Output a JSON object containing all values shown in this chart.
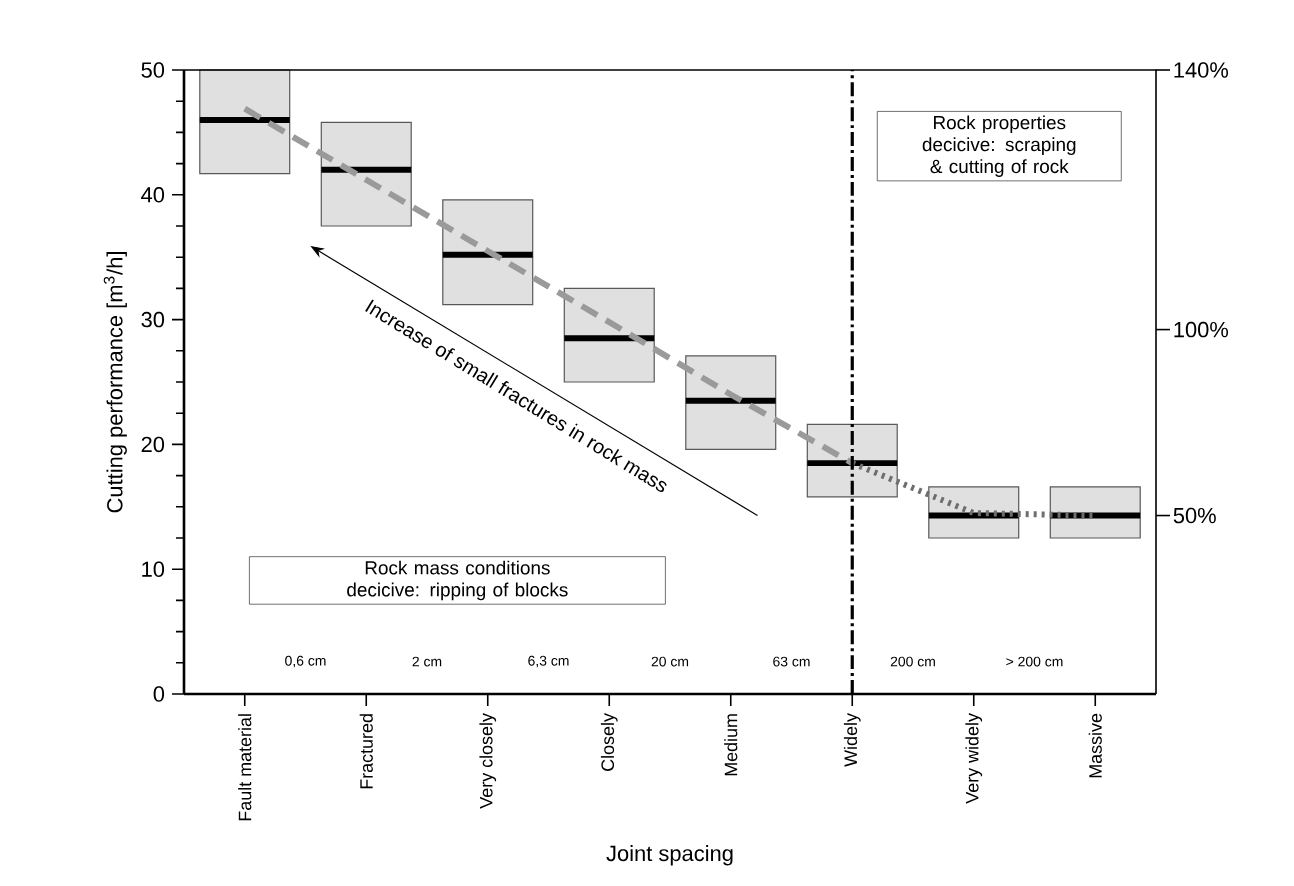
{
  "chart_data": {
    "type": "box",
    "xlabel": "Joint spacing",
    "ylabel": "Cutting performance  [m$^{3}$/h]",
    "categories": [
      "Fault material",
      "Fractured",
      "Very closely",
      "Closely",
      "Medium",
      "Widely",
      "Very  widely",
      "Massive"
    ],
    "color": "#e0e0e0",
    "boxes": [
      {
        "low": 41.7,
        "q1": 41.7,
        "median": 46,
        "q3": 50,
        "high": 50
      },
      {
        "low": 37.5,
        "q1": 37.5,
        "median": 42,
        "q3": 45.8,
        "high": 45.8
      },
      {
        "low": 31.2,
        "q1": 31.2,
        "median": 35.2,
        "q3": 39.6,
        "high": 39.6
      },
      {
        "low": 25,
        "q1": 25,
        "median": 28.5,
        "q3": 32.5,
        "high": 32.5
      },
      {
        "low": 19.6,
        "q1": 19.6,
        "median": 23.5,
        "q3": 27.1,
        "high": 27.1
      },
      {
        "low": 15.8,
        "q1": 15.8,
        "median": 18.5,
        "q3": 21.6,
        "high": 21.6
      },
      {
        "low": 12.5,
        "q1": 12.5,
        "median": 14.3,
        "q3": 16.6,
        "high": 16.6
      },
      {
        "low": 12.5,
        "q1": 12.5,
        "median": 14.3,
        "q3": 16.6,
        "high": 16.6
      }
    ],
    "series": [
      {
        "type": "line",
        "color": "#9a9a9a",
        "line_style": "dashed",
        "values": [
          46.9,
          41.2,
          35.5,
          29.8,
          24.0,
          18.5,
          null,
          null
        ]
      },
      {
        "type": "line",
        "color": "#6e6e6e",
        "line_style": "dotted",
        "values": [
          null,
          null,
          null,
          null,
          null,
          18.5,
          14.5,
          14.3
        ]
      }
    ],
    "ylim": [
      0,
      50
    ],
    "yticks": [
      0,
      10,
      20,
      30,
      40,
      50
    ],
    "ref_lines": [
      {
        "axis": "x",
        "value": "Widely",
        "color": "#000000",
        "line_style": "dashdot"
      }
    ],
    "marker": "none",
    "annotations": [
      "0,6 cm",
      "2 cm",
      "6,3 cm",
      "20 cm",
      "63 cm",
      "200 cm",
      "> 200 cm",
      "Increase of small fractures in rock mass",
      "Rock mass conditions  decicive: ripping of blocks",
      "Rock properties decicive: scraping & cutting of rock",
      "140%",
      "100%",
      "50%"
    ]
  }
}
